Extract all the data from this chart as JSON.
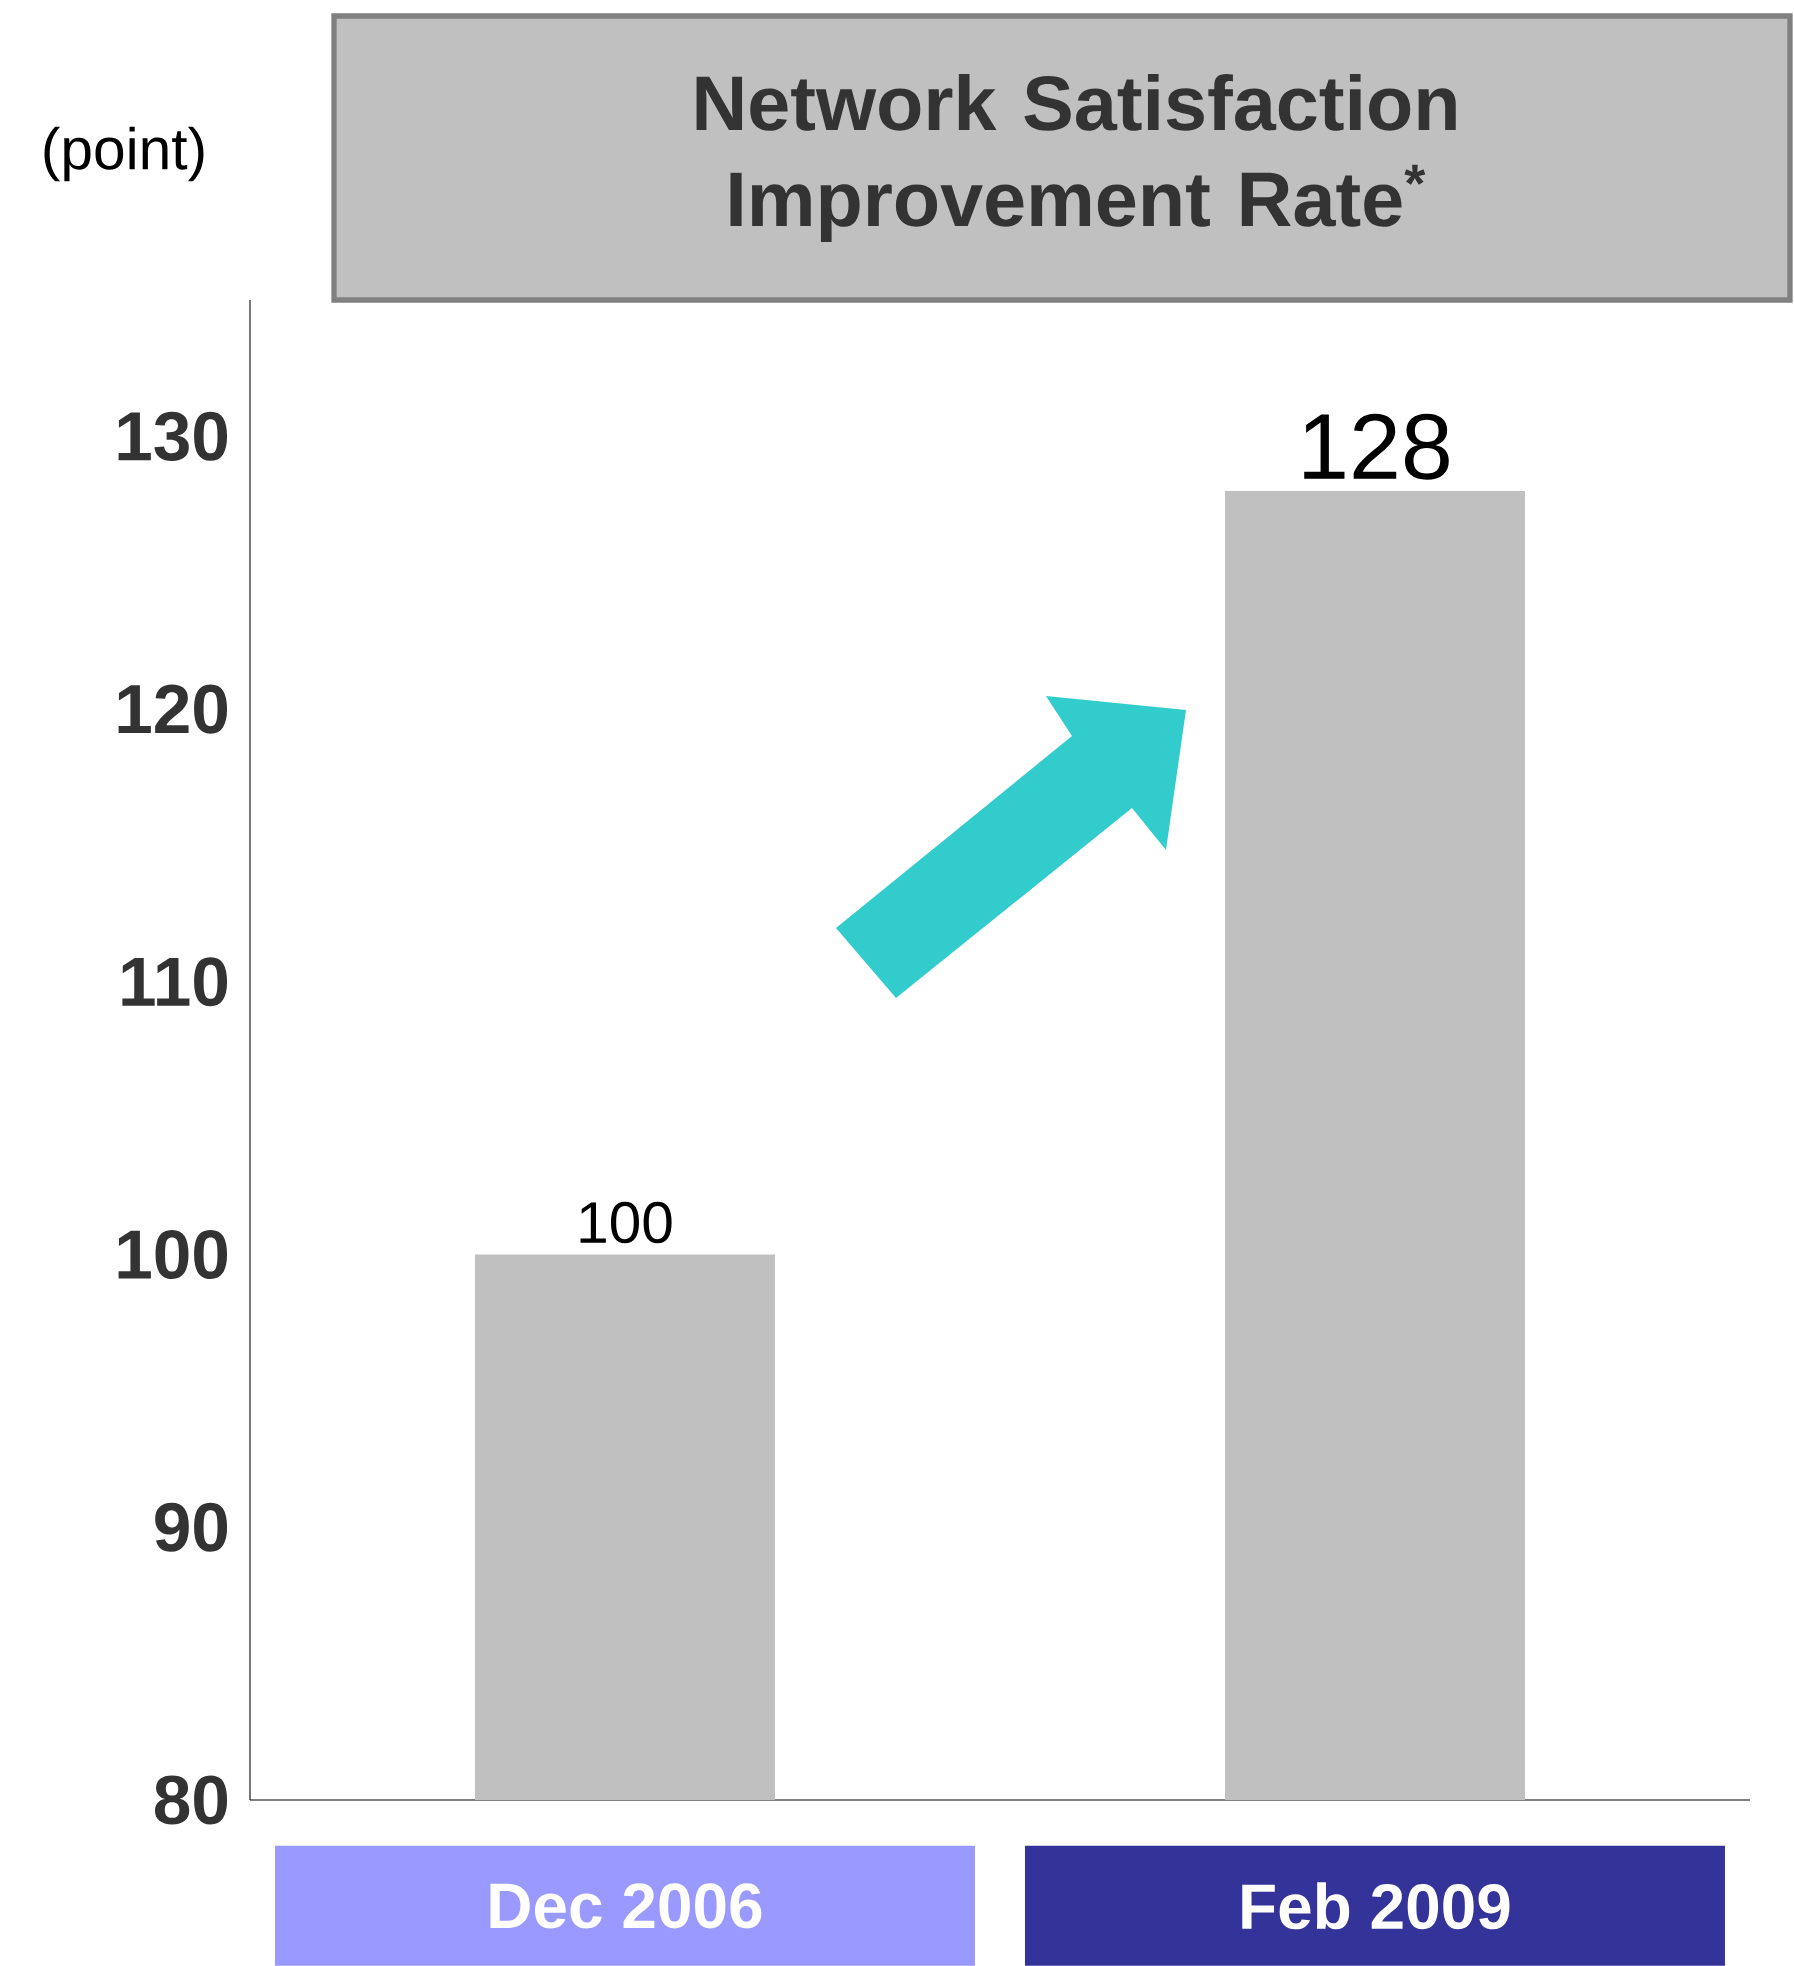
{
  "chart_data": {
    "type": "bar",
    "title": "Network Satisfaction Improvement Rate$^{*}$",
    "annotations": [
      "(point)"
    ],
    "categories": [
      "Dec 2006",
      "Feb 2009"
    ],
    "values": [
      100,
      128
    ],
    "color": "#c0c0c0",
    "ylim": [
      80,
      135
    ],
    "yticks": [
      80,
      90,
      100,
      110,
      120,
      130
    ],
    "data_labels": true
  }
}
